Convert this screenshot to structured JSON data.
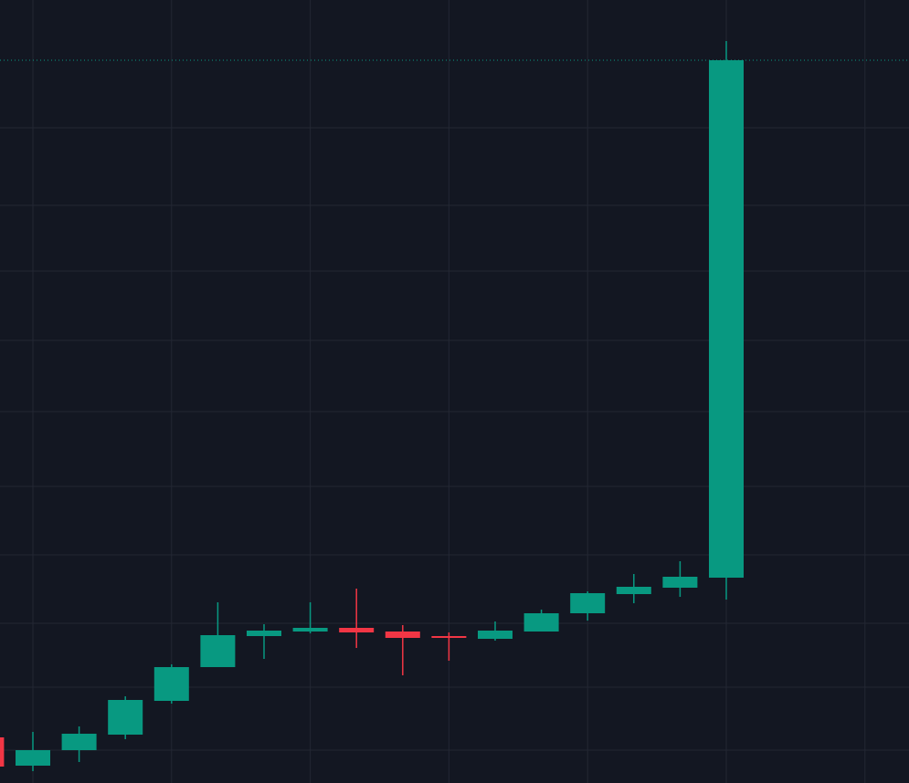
{
  "chart_data": {
    "type": "candlestick",
    "open": [
      50,
      19,
      36,
      53,
      90,
      127,
      161,
      166,
      170,
      166,
      161,
      158,
      166,
      186,
      207,
      214,
      225
    ],
    "high": [
      50,
      56,
      62,
      95,
      130,
      198,
      174,
      198,
      213,
      173,
      165,
      177,
      190,
      210,
      229,
      243,
      813
    ],
    "low": [
      18,
      13,
      23,
      48,
      87,
      127,
      136,
      164,
      148,
      118,
      134,
      156,
      166,
      178,
      197,
      204,
      201
    ],
    "close": [
      18,
      36,
      54,
      91,
      127,
      162,
      167,
      170,
      165,
      159,
      159,
      167,
      186,
      208,
      215,
      226,
      792
    ],
    "up_color": "#089981",
    "down_color": "#f23645",
    "ylim": [
      0,
      858
    ],
    "yticks": [
      36,
      105,
      175,
      250,
      325,
      407,
      485,
      561,
      633,
      718
    ],
    "grid": true,
    "last_price_line": true
  }
}
